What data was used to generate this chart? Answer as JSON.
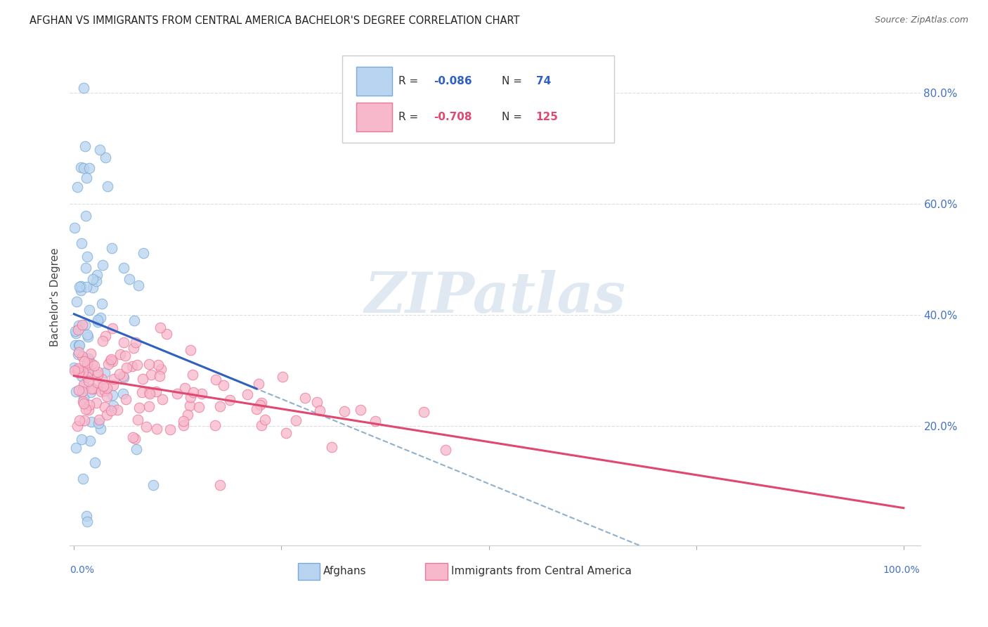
{
  "title": "AFGHAN VS IMMIGRANTS FROM CENTRAL AMERICA BACHELOR'S DEGREE CORRELATION CHART",
  "source": "Source: ZipAtlas.com",
  "ylabel": "Bachelor's Degree",
  "afghans_color_face": "#b8d4f0",
  "afghans_color_edge": "#7aaad8",
  "ca_color_face": "#f8b8cc",
  "ca_color_edge": "#e87898",
  "trendline_afghan_color": "#3060c0",
  "trendline_ca_color": "#e04870",
  "dashed_line_color": "#90b0cc",
  "watermark_color": "#c8d8e8",
  "tick_color": "#4472c4",
  "title_color": "#222222",
  "source_color": "#666666",
  "legend_r1_color": "#3060c0",
  "legend_r2_color": "#e04870",
  "legend_n1_color": "#3060c0",
  "legend_n2_color": "#e04870",
  "grid_color": "#dddddd",
  "ytick_vals": [
    0.2,
    0.4,
    0.6,
    0.8
  ],
  "xtick_vals": [
    0.0,
    0.25,
    0.5,
    0.75,
    1.0
  ],
  "xlim": [
    -0.005,
    1.02
  ],
  "ylim": [
    -0.015,
    0.88
  ],
  "n_afghan": 74,
  "n_ca": 125,
  "R_afghan": -0.086,
  "R_ca": -0.708,
  "watermark_text": "ZIPatlas",
  "legend_label1": "R = -0.086   N =  74",
  "legend_label2": "R = -0.708   N = 125",
  "bottom_label1": "Afghans",
  "bottom_label2": "Immigrants from Central America"
}
